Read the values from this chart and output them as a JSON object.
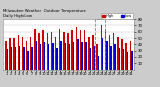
{
  "title": "Milwaukee Weather  Outdoor Temperature",
  "subtitle": "Daily High/Low",
  "days": [
    1,
    2,
    3,
    4,
    5,
    6,
    7,
    8,
    9,
    10,
    11,
    12,
    13,
    14,
    15,
    16,
    17,
    18,
    19,
    20,
    21,
    22,
    23,
    24,
    25,
    26,
    27,
    28,
    29,
    30,
    31
  ],
  "highs": [
    46,
    50,
    50,
    55,
    52,
    45,
    52,
    65,
    58,
    62,
    58,
    60,
    52,
    65,
    60,
    58,
    62,
    68,
    62,
    62,
    52,
    55,
    40,
    70,
    65,
    55,
    58,
    52,
    48,
    42,
    45
  ],
  "lows": [
    32,
    36,
    36,
    38,
    36,
    30,
    36,
    45,
    40,
    44,
    40,
    42,
    35,
    46,
    42,
    40,
    44,
    48,
    44,
    44,
    35,
    38,
    22,
    50,
    46,
    38,
    40,
    35,
    32,
    28,
    30
  ],
  "high_color": "#cc0000",
  "low_color": "#0000cc",
  "background_color": "#cccccc",
  "plot_bg_color": "#ffffff",
  "ylim": [
    0,
    80
  ],
  "yticks": [
    10,
    20,
    30,
    40,
    50,
    60,
    70,
    80
  ],
  "ytick_labels": [
    "10",
    "20",
    "30",
    "40",
    "50",
    "60",
    "70",
    "80"
  ],
  "highlight_day_indices": [
    22,
    23
  ],
  "bar_width": 0.35
}
